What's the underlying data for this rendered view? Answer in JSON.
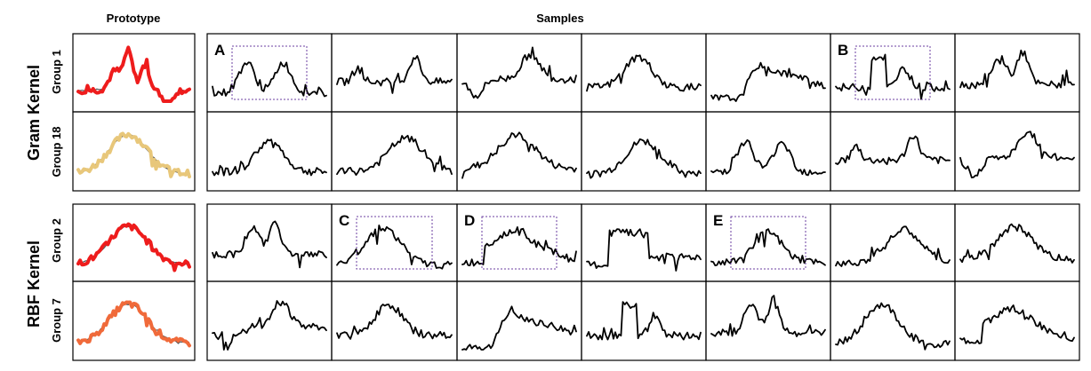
{
  "headers": {
    "prototype": "Prototype",
    "samples": "Samples"
  },
  "kernels": [
    {
      "label": "Gram Kernel",
      "groups": [
        {
          "label": "Group 1",
          "color": "#ee1c1c",
          "shape": "multi"
        },
        {
          "label": "Group 18",
          "color": "#e8c77a",
          "shape": "bell"
        }
      ]
    },
    {
      "label": "RBF Kernel",
      "groups": [
        {
          "label": "Group 2",
          "color": "#ee1c1c",
          "shape": "bell"
        },
        {
          "label": "Group 7",
          "color": "#f06a3a",
          "shape": "bell"
        }
      ]
    }
  ],
  "highlights": [
    {
      "letter": "A",
      "row": 0,
      "col": 0
    },
    {
      "letter": "B",
      "row": 0,
      "col": 5
    },
    {
      "letter": "C",
      "row": 2,
      "col": 1
    },
    {
      "letter": "D",
      "row": 2,
      "col": 2
    },
    {
      "letter": "E",
      "row": 2,
      "col": 4
    }
  ]
}
